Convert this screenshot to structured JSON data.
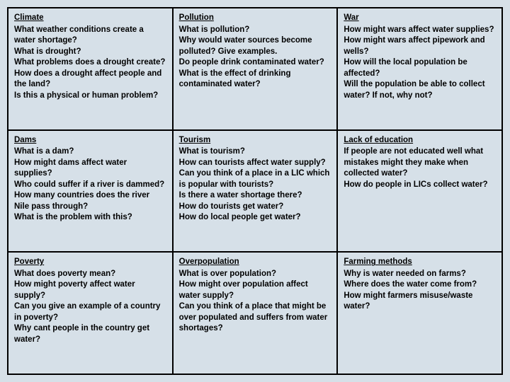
{
  "cells": {
    "climate": {
      "heading": "Climate",
      "questions": [
        "What weather conditions create a water shortage?",
        "What is drought?",
        "What problems does a drought create?",
        "How does a drought affect people and the land?",
        "Is this a physical or human problem?"
      ]
    },
    "pollution": {
      "heading": "Pollution",
      "questions": [
        "What is pollution?",
        "Why would water sources become polluted? Give examples.",
        "Do people drink contaminated water?",
        "What is the effect of drinking contaminated water?"
      ]
    },
    "war": {
      "heading": "War",
      "questions": [
        "How might wars affect water supplies?",
        "How might wars affect pipework and wells?",
        "How will the local population be affected?",
        "Will the population be able to collect water? If not, why not?"
      ]
    },
    "dams": {
      "heading": "Dams",
      "questions": [
        "What is a dam?",
        "How might dams affect water supplies?",
        "Who could suffer if a river is dammed?",
        "How many countries does the river Nile pass through?",
        "What is the problem with this?"
      ]
    },
    "tourism": {
      "heading": "Tourism",
      "questions": [
        "What is tourism?",
        "How can tourists affect water supply?",
        "Can you think of a place in a LIC which is popular with tourists?",
        "Is there a water shortage there?",
        "How do tourists get water?",
        "How do local people get water?"
      ]
    },
    "education": {
      "heading": "Lack of education",
      "questions": [
        "If people are not educated well what mistakes might they make when collected water?",
        "How do people in LICs collect water?"
      ]
    },
    "poverty": {
      "heading": "Poverty",
      "questions": [
        "What does poverty mean?",
        "How might poverty affect water supply?",
        "Can you give an example of a country in poverty?",
        "Why cant people in the country get water?"
      ]
    },
    "overpopulation": {
      "heading": "Overpopulation",
      "questions": [
        "What is over population?",
        "How might over population affect water supply?",
        "Can you think of a place that might be over populated and suffers from water shortages?"
      ]
    },
    "farming": {
      "heading": "Farming methods",
      "questions": [
        "Why is water needed on farms?",
        "Where does the water come from?",
        "How might farmers misuse/waste water?"
      ]
    }
  },
  "style": {
    "background_color": "#d6e0e8",
    "border_color": "#000000",
    "text_color": "#000000",
    "font_size_pt": 9,
    "font_weight": "bold",
    "columns": 3,
    "rows": 3
  }
}
